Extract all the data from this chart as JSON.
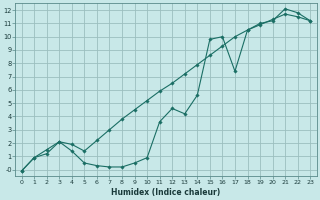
{
  "xlabel": "Humidex (Indice chaleur)",
  "background_color": "#c8e8e8",
  "grid_color": "#9bbfbf",
  "line_color": "#1a6e64",
  "xlim": [
    -0.5,
    23.5
  ],
  "ylim": [
    -0.5,
    12.5
  ],
  "xticks": [
    0,
    1,
    2,
    3,
    4,
    5,
    6,
    7,
    8,
    9,
    10,
    11,
    12,
    13,
    14,
    15,
    16,
    17,
    18,
    19,
    20,
    21,
    22,
    23
  ],
  "yticks": [
    0,
    1,
    2,
    3,
    4,
    5,
    6,
    7,
    8,
    9,
    10,
    11,
    12
  ],
  "ytick_labels": [
    "-0",
    "1",
    "2",
    "3",
    "4",
    "5",
    "6",
    "7",
    "8",
    "9",
    "10",
    "11",
    "12"
  ],
  "line1_x": [
    0,
    1,
    2,
    3,
    4,
    5,
    6,
    7,
    8,
    9,
    10,
    11,
    12,
    13,
    14,
    15,
    16,
    17,
    18,
    19,
    20,
    21,
    22,
    23
  ],
  "line1_y": [
    -0.1,
    0.9,
    1.2,
    2.1,
    1.4,
    0.5,
    0.3,
    0.2,
    0.2,
    0.5,
    0.9,
    3.6,
    4.6,
    4.2,
    5.6,
    9.8,
    10.0,
    7.4,
    10.5,
    11.0,
    11.2,
    12.1,
    11.8,
    11.2
  ],
  "line2_x": [
    0,
    1,
    2,
    3,
    4,
    5,
    6,
    7,
    8,
    9,
    10,
    11,
    12,
    13,
    14,
    15,
    16,
    17,
    18,
    19,
    20,
    21,
    22,
    23
  ],
  "line2_y": [
    -0.1,
    0.9,
    1.5,
    2.1,
    1.9,
    1.4,
    2.2,
    3.0,
    3.8,
    4.5,
    5.2,
    5.9,
    6.5,
    7.2,
    7.9,
    8.6,
    9.3,
    10.0,
    10.5,
    10.9,
    11.3,
    11.7,
    11.5,
    11.2
  ]
}
